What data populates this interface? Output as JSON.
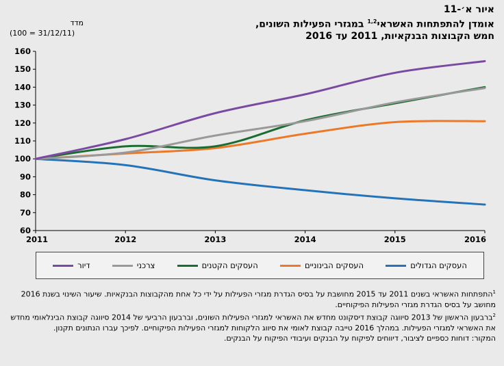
{
  "title": {
    "line1": "איור א׳-11",
    "line2_main": "אומדן להתפתחות האשראי",
    "line2_sup": "1,2",
    "line2_rest": " במגזרי הפעילות השונים,",
    "line3": "חמש הקבוצות הבנקאיות, 2011 עד 2016"
  },
  "unit": {
    "label": "מדד",
    "base": "(100 = 31/12/11)"
  },
  "colors": {
    "large": "#2472b8",
    "medium": "#ea7a2a",
    "small": "#1c6b31",
    "consumer": "#999999",
    "housing": "#7a4aa3"
  },
  "chart_data": {
    "type": "line",
    "x": [
      2011,
      2012,
      2013,
      2014,
      2015,
      2016
    ],
    "xlim": [
      2011,
      2016
    ],
    "ylim": [
      60,
      160
    ],
    "yticks": [
      60,
      70,
      80,
      90,
      100,
      110,
      120,
      130,
      140,
      150,
      160
    ],
    "grid": false,
    "legend_position": "bottom",
    "series": [
      {
        "key": "large",
        "name": "העסקים הגדולים",
        "values": [
          100,
          96.5,
          88,
          82.5,
          78,
          74.5
        ]
      },
      {
        "key": "medium",
        "name": "העסקים הבינוניים",
        "values": [
          100,
          103,
          106,
          114,
          120.5,
          121
        ]
      },
      {
        "key": "small",
        "name": "העסקים הקטנים",
        "values": [
          100,
          107,
          107,
          121.5,
          131,
          140
        ]
      },
      {
        "key": "consumer",
        "name": "צרכני",
        "values": [
          100,
          103.5,
          113,
          121,
          131.5,
          139.5
        ]
      },
      {
        "key": "housing",
        "name": "דיור",
        "values": [
          100,
          111,
          125.5,
          136,
          148,
          154.5
        ]
      }
    ]
  },
  "notes": {
    "n1_mark": "1",
    "n1_text": "התפתחות האשראי בשנים 2011 עד 2015 מחושבת על בסיס הגדרת מגזרי הפעילות על ידי כל אחת מהקבוצות הבנקאיות. שיעור השינוי בשנת 2016 מחושב על בסיס הגדרת מגזרי הפעילות הפיקוחיים.",
    "n2_mark": "2",
    "n2_text": "ברבעון הראשון של 2013 סיווגה קבוצת דיסקונט מחדש את האשראי למגזרי הפעילות השונים, וברבעון הרביעי של 2014 סיווגה קבוצת הבינלאומי מחדש את האשראי למגזרי הפעילות. במהלך 2016 טייבה קבוצת לאומי את סיווג הלקוחות למגזרי הפעילות הפיקוחיים. לפיכך עברו הנתונים תקנון.",
    "source": "המקור: דוחות כספיים לציבור, דיווחים לפיקוח על הבנקים ועיבודי הפיקוח על הבנקים."
  }
}
